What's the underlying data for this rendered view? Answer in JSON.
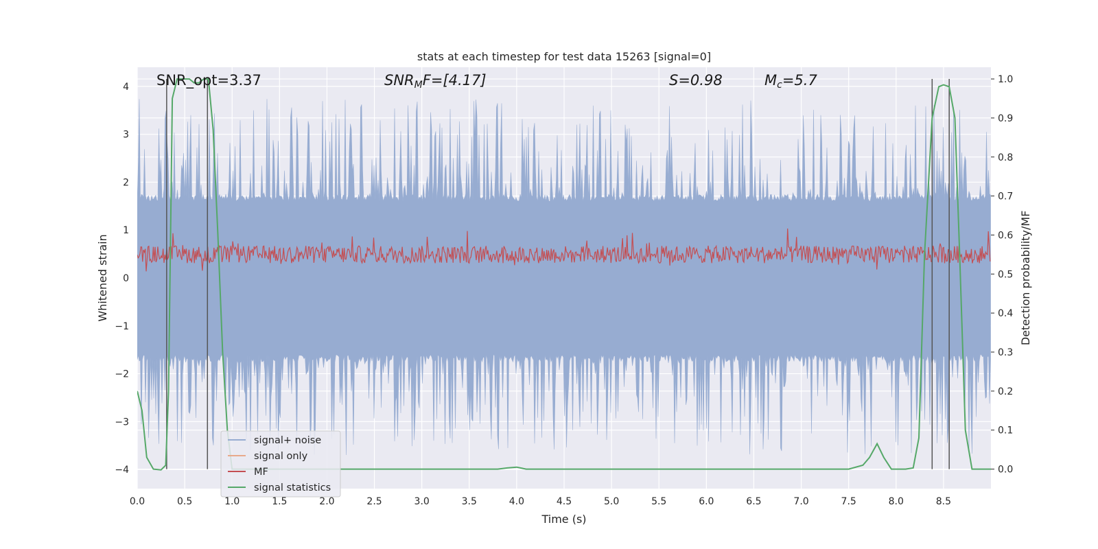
{
  "chart_data": {
    "type": "line",
    "title": "stats at each timestep for test data 15263 [signal=0]",
    "xlabel": "Time (s)",
    "ylabel_left": "Whitened strain",
    "ylabel_right": "Detection probability/MF",
    "xlim": [
      0.0,
      9.0
    ],
    "ylim_left": [
      -4.4,
      4.4
    ],
    "ylim_right": [
      -0.05,
      1.03
    ],
    "xticks": [
      "0.0",
      "0.5",
      "1.0",
      "1.5",
      "2.0",
      "2.5",
      "3.0",
      "3.5",
      "4.0",
      "4.5",
      "5.0",
      "5.5",
      "6.0",
      "6.5",
      "7.0",
      "7.5",
      "8.0",
      "8.5"
    ],
    "yticks_left": [
      "4",
      "3",
      "2",
      "1",
      "0",
      "−1",
      "−2",
      "−3",
      "−4"
    ],
    "yticks_right": [
      "1.0",
      "0.9",
      "0.8",
      "0.7",
      "0.6",
      "0.5",
      "0.4",
      "0.3",
      "0.2",
      "0.1",
      "0.0"
    ],
    "annotations": {
      "snr_opt": "SNR_opt=3.37",
      "snr_mf_base": "SNR",
      "snr_mf_sub": "M",
      "snr_mf_rest": "F=[4.17]",
      "s_stat": "S=0.98",
      "mc_base": "M",
      "mc_sub": "c",
      "mc_rest": "=5.7"
    },
    "legend": {
      "location": "lower left",
      "entries": [
        "signal+ noise",
        "signal only",
        "MF",
        "signal statistics"
      ]
    },
    "series": [
      {
        "name": "signal+ noise",
        "axis": "left",
        "color": "#97acd1",
        "style": "noise band, amplitude about ±1.6 with spikes to ±3.7"
      },
      {
        "name": "signal only",
        "axis": "left",
        "color": "#e8a98a",
        "values": []
      },
      {
        "name": "MF",
        "axis": "right",
        "color": "#c44e52",
        "style": "noisy trace centred near 0.55"
      },
      {
        "name": "signal statistics",
        "axis": "right",
        "color": "#55a868",
        "x": [
          0.0,
          0.05,
          0.1,
          0.17,
          0.25,
          0.3,
          0.33,
          0.37,
          0.42,
          0.5,
          0.55,
          0.6,
          0.65,
          0.7,
          0.75,
          0.8,
          0.85,
          0.9,
          0.95,
          1.0,
          1.2,
          1.6,
          2.0,
          2.5,
          3.0,
          3.5,
          3.8,
          3.9,
          4.0,
          4.1,
          4.3,
          5.0,
          6.0,
          7.0,
          7.5,
          7.65,
          7.72,
          7.8,
          7.87,
          7.95,
          8.0,
          8.1,
          8.18,
          8.24,
          8.3,
          8.38,
          8.45,
          8.5,
          8.56,
          8.62,
          8.67,
          8.73,
          8.8,
          8.9,
          9.0
        ],
        "y": [
          0.2,
          0.15,
          0.03,
          0.0,
          -0.002,
          0.01,
          0.2,
          0.95,
          1.0,
          1.0,
          1.0,
          0.99,
          0.99,
          1.0,
          1.0,
          0.87,
          0.6,
          0.3,
          0.1,
          0.0,
          0.0,
          0.0,
          0.0,
          0.0,
          0.0,
          0.0,
          0.0,
          0.003,
          0.005,
          0.0,
          0.0,
          0.0,
          0.0,
          0.0,
          0.0,
          0.01,
          0.03,
          0.065,
          0.03,
          0.0,
          0.0,
          0.0,
          0.003,
          0.08,
          0.55,
          0.9,
          0.98,
          0.985,
          0.98,
          0.9,
          0.55,
          0.1,
          0.0,
          0.0,
          0.0
        ]
      },
      {
        "name": "vertical markers",
        "axis": "right",
        "color": "#555555",
        "x": [
          0.31,
          0.74,
          8.38,
          8.56
        ]
      }
    ]
  }
}
